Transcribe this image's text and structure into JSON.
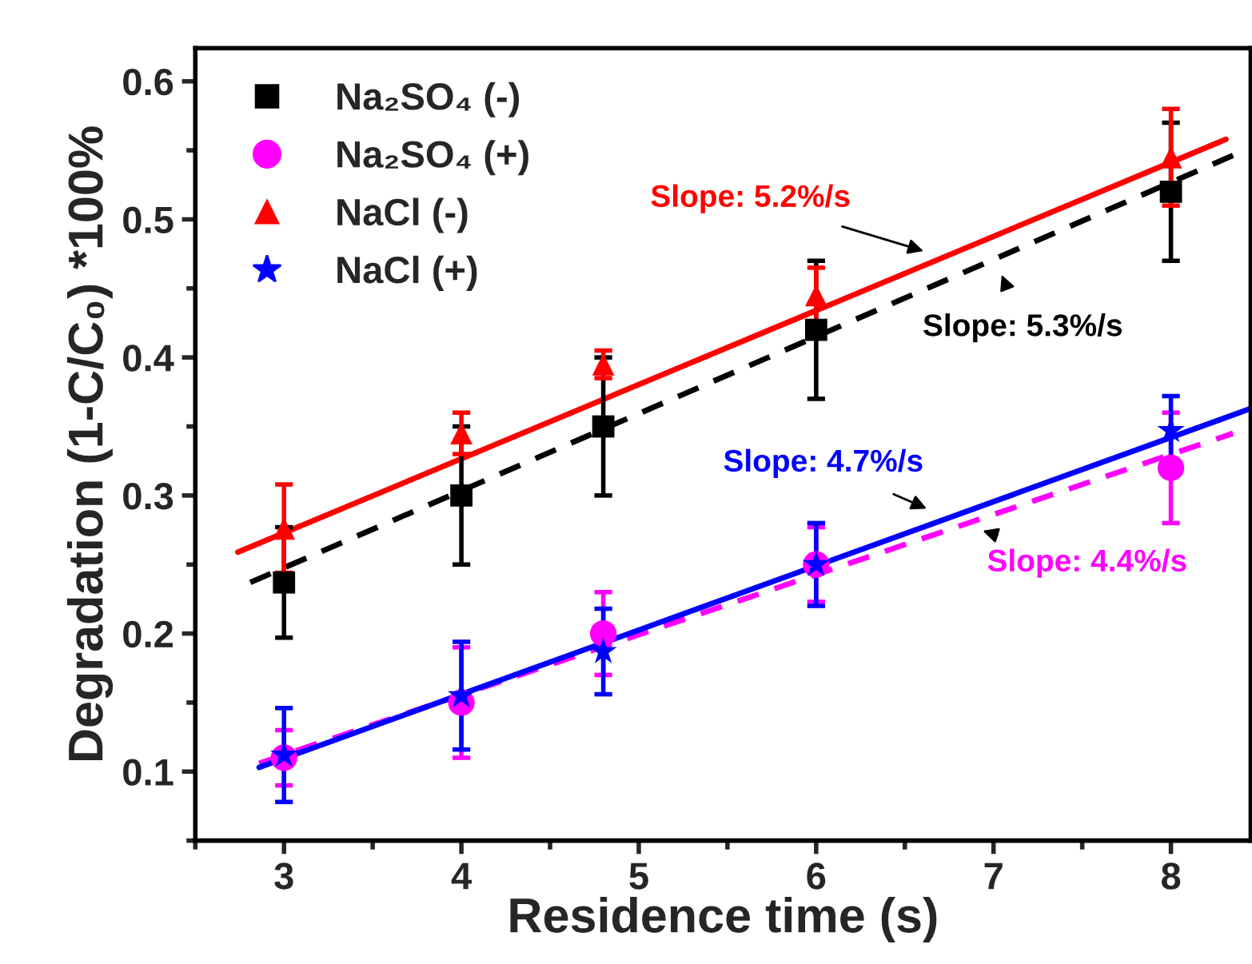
{
  "chart_data": {
    "type": "scatter",
    "xlabel": "Residence time (s)",
    "ylabel": "Degradation (1-C/C₀) *100%",
    "xlim": [
      2.5,
      8.45
    ],
    "ylim": [
      0.05,
      0.624
    ],
    "xticks": [
      3,
      4,
      5,
      6,
      7,
      8
    ],
    "yticks": [
      0.1,
      0.2,
      0.3,
      0.4,
      0.5,
      0.6
    ],
    "grid": false,
    "legend": "top left",
    "series": [
      {
        "name": "Na₂SO₄ (-)",
        "marker": "square",
        "color": "#000000",
        "x": [
          3,
          4,
          4.8,
          6,
          8
        ],
        "values": [
          0.237,
          0.3,
          0.35,
          0.42,
          0.52
        ],
        "errors": [
          0.04,
          0.05,
          0.05,
          0.05,
          0.05
        ]
      },
      {
        "name": "Na₂SO₄ (+)",
        "marker": "circle",
        "color": "#ff00ff",
        "x": [
          3,
          4,
          4.8,
          6,
          8
        ],
        "values": [
          0.11,
          0.15,
          0.2,
          0.25,
          0.32
        ],
        "errors": [
          0.02,
          0.04,
          0.03,
          0.027,
          0.04
        ]
      },
      {
        "name": "NaCl (-)",
        "marker": "triangle",
        "color": "#ff0000",
        "x": [
          3,
          4,
          4.8,
          6,
          8
        ],
        "values": [
          0.276,
          0.345,
          0.395,
          0.445,
          0.545
        ],
        "errors": [
          0.032,
          0.015,
          0.01,
          0.02,
          0.035
        ]
      },
      {
        "name": "NaCl (+)",
        "marker": "star",
        "color": "#0000ff",
        "x": [
          3,
          4,
          4.8,
          6,
          8
        ],
        "values": [
          0.112,
          0.155,
          0.187,
          0.25,
          0.347
        ],
        "errors": [
          0.034,
          0.039,
          0.031,
          0.03,
          0.025
        ]
      },
      {
        "type": "line",
        "line_style": "dashed",
        "color": "#000000",
        "x": [
          2.81,
          8.38
        ],
        "values": [
          0.237,
          0.548
        ]
      },
      {
        "type": "line",
        "line_style": "dashed",
        "color": "#ff00ff",
        "x": [
          2.86,
          8.35
        ],
        "values": [
          0.106,
          0.345
        ]
      },
      {
        "type": "line",
        "line_style": "solid",
        "color": "#ff0000",
        "x": [
          2.74,
          8.31
        ],
        "values": [
          0.259,
          0.558
        ]
      },
      {
        "type": "line",
        "line_style": "solid",
        "color": "#0000ff",
        "x": [
          2.86,
          8.45
        ],
        "values": [
          0.103,
          0.363
        ]
      }
    ],
    "annotations": [
      "Slope: 5.3%/s",
      "Slope: 4.4%/s",
      "Slope: 5.2%/s",
      "Slope: 4.7%/s"
    ]
  }
}
